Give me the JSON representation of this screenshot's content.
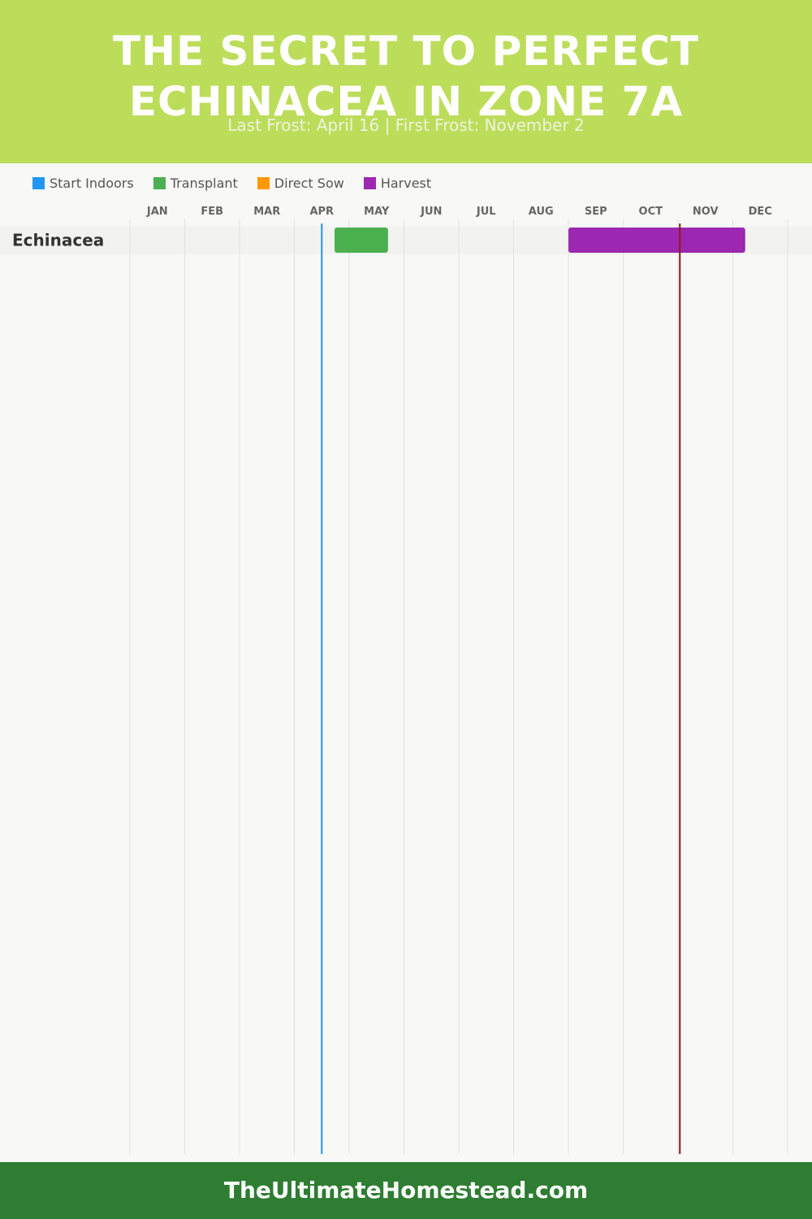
{
  "header": {
    "title": "THE SECRET TO PERFECT ECHINACEA IN ZONE 7A",
    "subtitle": "Last Frost: April 16 | First Frost: November 2",
    "background_color": "#bcdd5a"
  },
  "footer": {
    "text": "TheUltimateHomestead.com",
    "background_color": "#2e7d32"
  },
  "chart_data": {
    "type": "gantt",
    "months": [
      "JAN",
      "FEB",
      "MAR",
      "APR",
      "MAY",
      "JUN",
      "JUL",
      "AUG",
      "SEP",
      "OCT",
      "NOV",
      "DEC"
    ],
    "legend": [
      {
        "name": "Start Indoors",
        "color": "#2196f3"
      },
      {
        "name": "Transplant",
        "color": "#4caf50"
      },
      {
        "name": "Direct Sow",
        "color": "#ff9800"
      },
      {
        "name": "Harvest",
        "color": "#9c27b0"
      }
    ],
    "rows": [
      {
        "name": "Echinacea",
        "tasks": [
          {
            "series": "Transplant",
            "start": "04-23",
            "end": "05-23"
          },
          {
            "series": "Harvest",
            "start": "09-01",
            "end": "12-08"
          }
        ]
      }
    ],
    "markers": [
      {
        "name": "Last Frost",
        "date": "04-16",
        "color": "#2196f3"
      },
      {
        "name": "First Frost",
        "date": "11-02",
        "color": "#8b1a1a"
      }
    ]
  }
}
